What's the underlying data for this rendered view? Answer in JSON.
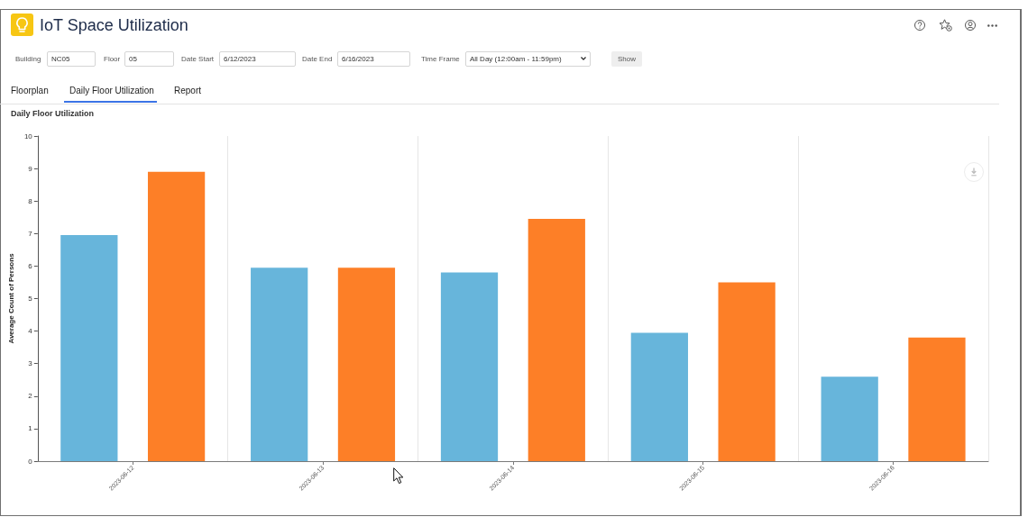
{
  "chart_data": {
    "type": "bar",
    "title": "IoT Space Utilization",
    "subtitle": "Daily Floor Utilization",
    "ylabel": "Average Count of Persons",
    "categories": [
      "2023-06-12",
      "2023-06-13",
      "2023-06-14",
      "2023-06-15",
      "2023-06-16"
    ],
    "series": [
      {
        "color": "#67b5db",
        "values": [
          6.95,
          5.95,
          5.8,
          3.95,
          2.6
        ]
      },
      {
        "color": "#fd7f27",
        "values": [
          8.9,
          5.95,
          7.45,
          5.5,
          3.8
        ]
      }
    ],
    "ylim": [
      0,
      10
    ],
    "yticks": [
      0,
      1,
      2,
      3,
      4,
      5,
      6,
      7,
      8,
      9,
      10
    ],
    "grid": "x",
    "annotations": [
      "Building",
      "NC05",
      "Floor",
      "05",
      "Date Start",
      "6/12/2023",
      "Date End",
      "6/16/2023",
      "Time Frame",
      "All Day (12:00am - 11:59pm)",
      "Show",
      "Floorplan",
      "Daily Floor Utilization",
      "Report"
    ]
  }
}
